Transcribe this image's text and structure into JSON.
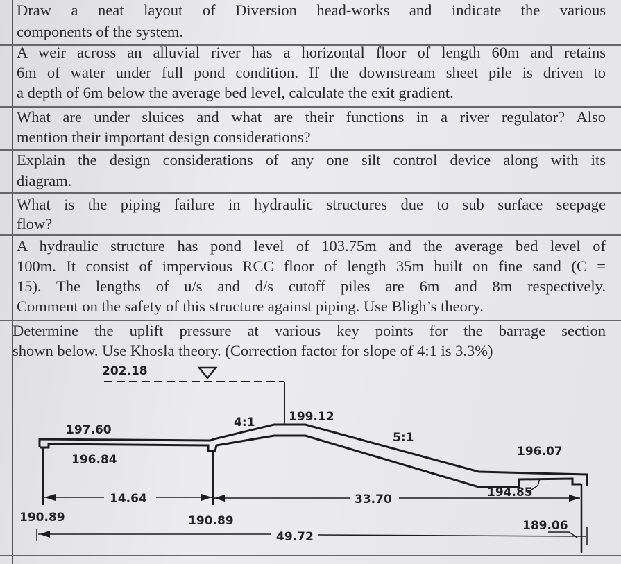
{
  "questions": [
    {
      "lines": [
        "Draw a neat layout of Diversion head-works and indicate the various",
        "components of the system."
      ]
    },
    {
      "lines": [
        "A weir across an alluvial river has a horizontal floor of length 60m and retains",
        "6m of water under full pond condition. If the downstream sheet pile is driven to",
        "a depth of 6m below the average bed level, calculate the exit gradient."
      ]
    },
    {
      "lines": [
        "What are under sluices and what are their functions in a river regulator? Also",
        "mention their important design considerations?"
      ]
    },
    {
      "lines": [
        "Explain the design considerations of any one silt control device along with its",
        "diagram."
      ]
    },
    {
      "lines": [
        "What is the piping failure in hydraulic structures due to sub surface seepage",
        "flow?"
      ]
    },
    {
      "lines": [
        "A hydraulic structure has pond level of 103.75m and the average bed level of",
        "100m. It consist of impervious RCC floor of length 35m built on fine sand (C =",
        "15). The lengths of u/s and d/s cutoff piles are 6m and 8m respectively.",
        "Comment on the safety of this structure against piping. Use Bligh’s theory."
      ]
    },
    {
      "lines": [
        "Determine the uplift pressure at various key points for the barrage section",
        "shown below. Use Khosla theory. (Correction factor for slope of 4:1 is 3.3%)"
      ]
    }
  ],
  "diagram": {
    "water_level": "202.18",
    "upstream_floor_top": "197.60",
    "upstream_floor_bottom": "196.84",
    "upstream_slope": "4:1",
    "crest": "199.12",
    "downstream_slope": "5:1",
    "downstream_floor_top": "196.07",
    "downstream_floor_bottom": "194.85",
    "dim_upstream": "14.64",
    "dim_downstream": "33.70",
    "dim_total": "49.72",
    "us_pile_bottom": "190.89",
    "mid_pile_bottom": "190.89",
    "ds_pile_bottom": "189.06"
  }
}
